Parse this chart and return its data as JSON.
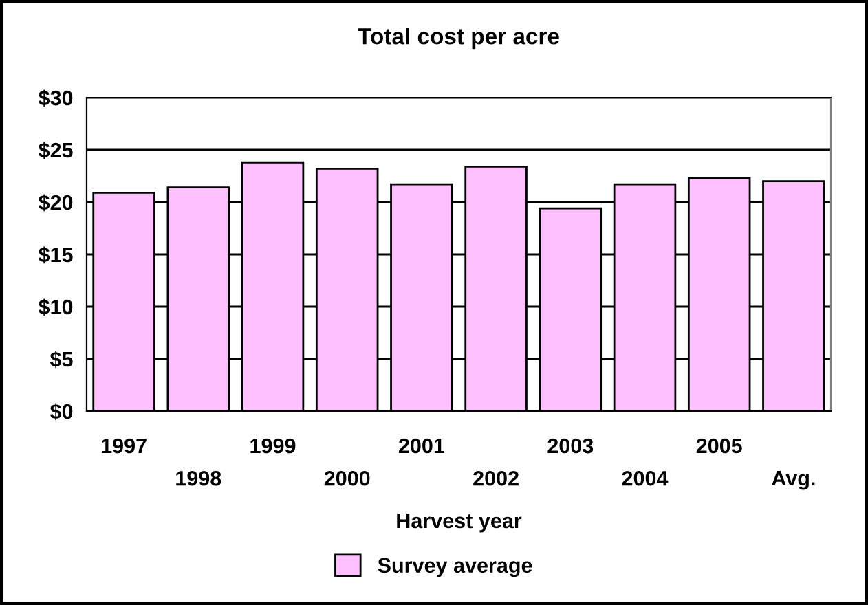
{
  "chart_data": {
    "type": "bar",
    "title": "Total cost per acre",
    "xlabel": "Harvest year",
    "categories": [
      "1997",
      "1998",
      "1999",
      "2000",
      "2001",
      "2002",
      "2003",
      "2004",
      "2005",
      "Avg."
    ],
    "series": [
      {
        "name": "Survey average",
        "color": "#ffc0ff",
        "values": [
          20.9,
          21.4,
          23.8,
          23.2,
          21.7,
          23.4,
          19.4,
          21.7,
          22.3,
          22.0
        ]
      }
    ],
    "ylim": [
      0,
      30
    ],
    "yticks": [
      {
        "value": 0,
        "label": "$0"
      },
      {
        "value": 5,
        "label": "$5"
      },
      {
        "value": 10,
        "label": "$10"
      },
      {
        "value": 15,
        "label": "$15"
      },
      {
        "value": 20,
        "label": "$20"
      },
      {
        "value": 25,
        "label": "$25"
      },
      {
        "value": 30,
        "label": "$30"
      }
    ],
    "grid": "y",
    "legend": "bottom"
  }
}
